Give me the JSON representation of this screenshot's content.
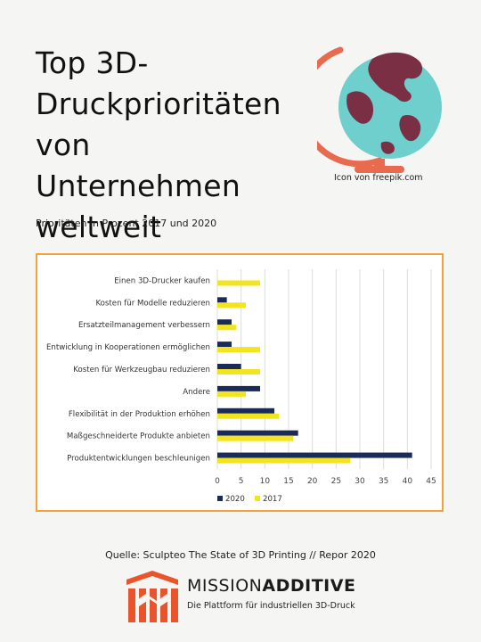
{
  "header": {
    "title_lines": [
      "Top 3D-",
      "Druckprioritäten",
      "von Unternehmen",
      "weltweit"
    ],
    "subtitle": "Prioritäten in Prozent 2017 und 2020"
  },
  "icon_credit": "Icon von  freepik.com",
  "source": "Quelle: Sculpteo The State of 3D Printing // Repor 2020",
  "logo": {
    "brand_part1": "MISSION",
    "brand_part2": "ADDITIVE",
    "tagline": "Die Plattform für industriellen 3D-Druck"
  },
  "colors": {
    "series_2020": "#1a2b57",
    "series_2017": "#f2e41e",
    "chart_border": "#f0a33c",
    "globe_ocean": "#6ecfcd",
    "globe_land": "#7b2f45",
    "globe_stand": "#e86a4f",
    "logo_orange": "#e9542a"
  },
  "chart_data": {
    "type": "bar",
    "orientation": "horizontal",
    "categories": [
      "Einen 3D-Drucker kaufen",
      "Kosten für Modelle reduzieren",
      "Ersatzteilmanagement verbessern",
      "Entwicklung in Kooperationen ermöglichen",
      "Kosten für Werkzeugbau reduzieren",
      "Andere",
      "Flexibilität in der Produktion erhöhen",
      "Maßgeschneiderte Produkte anbieten",
      "Produktentwicklungen beschleunigen"
    ],
    "series": [
      {
        "name": "2020",
        "values": [
          0,
          2,
          3,
          3,
          5,
          9,
          12,
          17,
          41
        ]
      },
      {
        "name": "2017",
        "values": [
          9,
          6,
          4,
          9,
          9,
          6,
          13,
          16,
          28
        ]
      }
    ],
    "xlim": [
      0,
      45
    ],
    "xticks": [
      0,
      5,
      10,
      15,
      20,
      25,
      30,
      35,
      40,
      45
    ],
    "grid": true,
    "legend_position": "bottom-left"
  }
}
